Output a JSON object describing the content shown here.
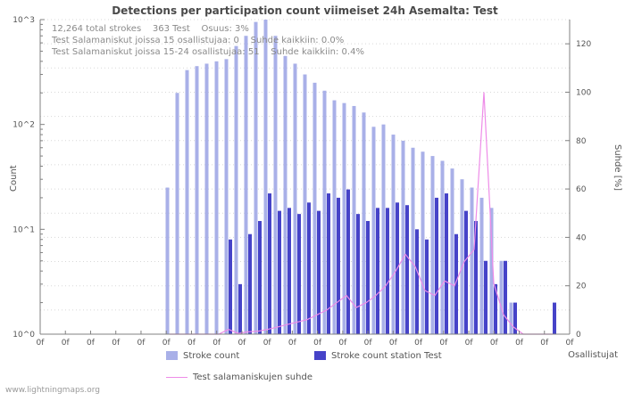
{
  "page": {
    "watermark": "www.lightningmaps.org"
  },
  "chart_data": {
    "type": "bar",
    "title": "Detections per participation count viimeiset 24h Asemalta: Test",
    "x_axis": {
      "label": "Osallistujat",
      "tick_label": "0f",
      "tick_count": 22
    },
    "y_left": {
      "label": "Count",
      "scale": "log",
      "tick_labels": [
        "10^0",
        "10^1",
        "10^2",
        "10^3"
      ],
      "range_log10": [
        0,
        3
      ]
    },
    "y_right": {
      "label": "Suhde [%]",
      "ticks": [
        0,
        20,
        40,
        60,
        80,
        100,
        120
      ],
      "max": 130
    },
    "annotations": {
      "line1": "12,264 total strokes    363 Test    Osuus: 3%",
      "line2": "Test Salamaniskut joissa 15 osallistujaa: 0    Suhde kaikkiin: 0.0%",
      "line3": "Test Salamaniskut joissa 15-24 osallistujaa: 51    Suhde kaikkiin: 0.4%"
    },
    "series": [
      {
        "name": "Stroke count",
        "type": "bar",
        "axis": "left",
        "color": "#a9b0e8",
        "values": [
          25,
          200,
          330,
          360,
          380,
          400,
          420,
          560,
          700,
          950,
          1000,
          700,
          450,
          380,
          300,
          250,
          210,
          170,
          160,
          150,
          130,
          95,
          100,
          80,
          70,
          60,
          55,
          50,
          45,
          38,
          30,
          25,
          20,
          16,
          5,
          2,
          0,
          0,
          0,
          0
        ]
      },
      {
        "name": "Stroke count station Test",
        "type": "bar",
        "axis": "left",
        "color": "#4643c8",
        "values": [
          0,
          0,
          0,
          0,
          0,
          0,
          8,
          3,
          9,
          12,
          22,
          15,
          16,
          14,
          18,
          15,
          22,
          20,
          24,
          14,
          12,
          16,
          16,
          18,
          17,
          10,
          8,
          20,
          22,
          9,
          15,
          12,
          5,
          3,
          5,
          2,
          0,
          0,
          0,
          2
        ]
      },
      {
        "name": "Test salamaniskujen suhde",
        "type": "line",
        "axis": "right",
        "color": "#ee8ce8",
        "values": [
          0,
          0,
          0,
          0,
          0,
          0,
          2,
          0.3,
          1,
          1.2,
          2,
          3,
          4,
          5,
          6,
          8,
          10,
          13,
          16,
          11,
          13,
          16,
          20,
          26,
          33,
          28,
          18,
          16,
          22,
          20,
          30,
          35,
          100,
          21,
          8,
          3,
          0,
          0,
          0,
          0
        ]
      }
    ],
    "colors": {
      "grid": "#d8d8d8",
      "axis": "#808080",
      "text": "#555555",
      "annotation": "#8a8a8a"
    }
  },
  "legend": {
    "items": [
      "Stroke count",
      "Stroke count station Test",
      "Test salamaniskujen suhde"
    ]
  }
}
